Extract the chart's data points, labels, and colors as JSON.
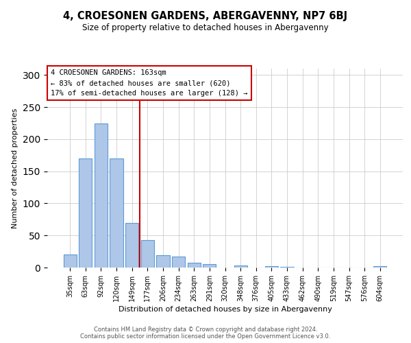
{
  "title": "4, CROESONEN GARDENS, ABERGAVENNY, NP7 6BJ",
  "subtitle": "Size of property relative to detached houses in Abergavenny",
  "xlabel": "Distribution of detached houses by size in Abergavenny",
  "ylabel": "Number of detached properties",
  "bar_labels": [
    "35sqm",
    "63sqm",
    "92sqm",
    "120sqm",
    "149sqm",
    "177sqm",
    "206sqm",
    "234sqm",
    "263sqm",
    "291sqm",
    "320sqm",
    "348sqm",
    "376sqm",
    "405sqm",
    "433sqm",
    "462sqm",
    "490sqm",
    "519sqm",
    "547sqm",
    "576sqm",
    "604sqm"
  ],
  "bar_values": [
    20,
    170,
    225,
    170,
    70,
    43,
    19,
    17,
    8,
    5,
    0,
    3,
    0,
    2,
    1,
    0,
    0,
    0,
    0,
    0,
    2
  ],
  "bar_color": "#aec6e8",
  "bar_edge_color": "#5b9bd5",
  "vline_pos": 4.5,
  "vline_color": "#cc0000",
  "annotation_lines": [
    "4 CROESONEN GARDENS: 163sqm",
    "← 83% of detached houses are smaller (620)",
    "17% of semi-detached houses are larger (128) →"
  ],
  "annotation_box_edgecolor": "#cc0000",
  "ylim": [
    0,
    310
  ],
  "yticks": [
    0,
    50,
    100,
    150,
    200,
    250,
    300
  ],
  "footer_line1": "Contains HM Land Registry data © Crown copyright and database right 2024.",
  "footer_line2": "Contains public sector information licensed under the Open Government Licence v3.0.",
  "background_color": "#ffffff",
  "grid_color": "#cccccc"
}
